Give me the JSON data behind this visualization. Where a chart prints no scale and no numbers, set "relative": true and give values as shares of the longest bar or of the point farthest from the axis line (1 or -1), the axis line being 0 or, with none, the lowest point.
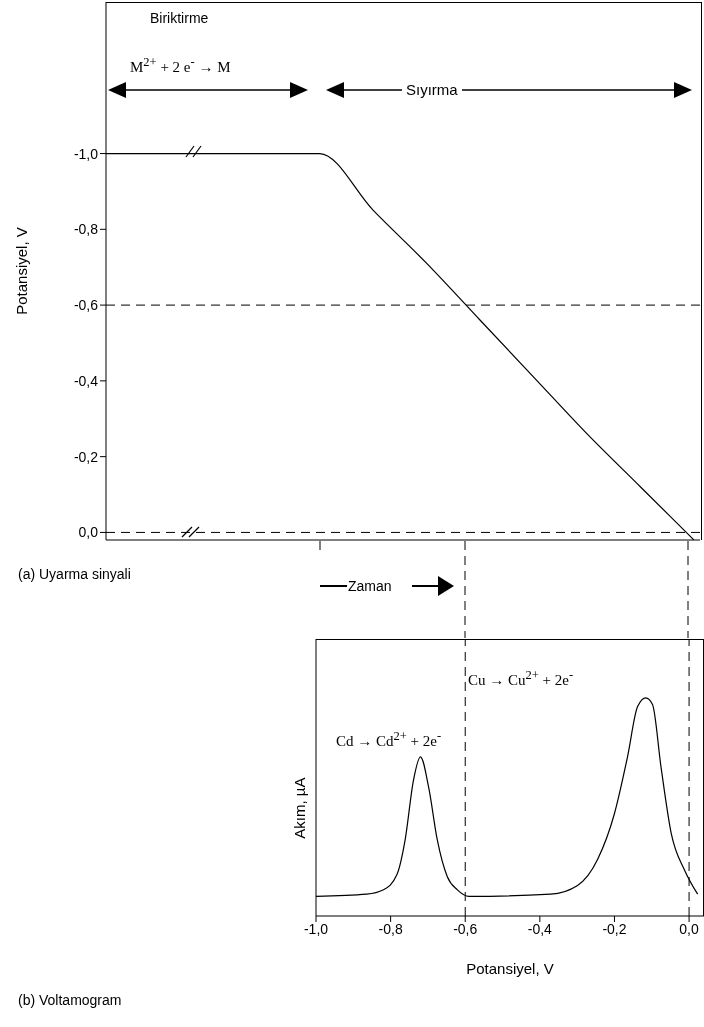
{
  "chart_data": [
    {
      "type": "line",
      "categories": [
        null,
        null,
        null,
        null,
        null,
        null,
        null,
        null,
        null,
        null,
        null,
        null
      ],
      "series": [
        {
          "color": "#000000",
          "values": [
            -1,
            -1,
            -1,
            -1,
            -1,
            -0.85,
            -0.71,
            -0.56,
            -0.41,
            -0.26,
            -0.12,
            0.02
          ]
        }
      ],
      "ylim": [
        0.02,
        -1.4
      ],
      "yticks": [
        {
          "value": -1,
          "label": "-1,0"
        },
        {
          "value": -0.8,
          "label": "-0,8"
        },
        {
          "value": -0.6,
          "label": "-0,6"
        },
        {
          "value": -0.4,
          "label": "-0,4"
        },
        {
          "value": -0.2,
          "label": "-0,2"
        },
        {
          "value": 0,
          "label": "0,0"
        }
      ],
      "ylabel": "Potansiyel, V",
      "annotations": [
        "Biriktirme",
        "M$^{2+}$ + 2 e$^{-}$ → M",
        "Sıyırma",
        "(a) Uyarma sinyali",
        "Zaman"
      ],
      "ref_lines": [
        {
          "axis": "y",
          "value": -0.6,
          "color": "#000000",
          "line_style": "dashed"
        },
        {
          "axis": "y",
          "value": 0,
          "color": "#000000",
          "line_style": "dashed"
        }
      ],
      "marker": "none",
      "tick_labels": "y"
    },
    {
      "type": "line",
      "x": [
        -1,
        -0.864,
        -0.819,
        -0.783,
        -0.761,
        -0.739,
        -0.72,
        -0.698,
        -0.675,
        -0.648,
        -0.621,
        -0.59,
        -0.371,
        -0.299,
        -0.245,
        -0.2,
        -0.165,
        -0.138,
        -0.116,
        -0.098,
        -0.075,
        -0.048,
        -0.012,
        0.023
      ],
      "series": [
        {
          "color": "#000000",
          "values": [
            0.09,
            0.1,
            0.12,
            0.19,
            0.35,
            0.62,
            0.73,
            0.59,
            0.35,
            0.18,
            0.12,
            0.09,
            0.1,
            0.14,
            0.26,
            0.47,
            0.73,
            0.96,
            1,
            0.97,
            0.68,
            0.38,
            0.21,
            0.1
          ]
        }
      ],
      "relative": true,
      "xlim": [
        -1,
        0.04
      ],
      "xticks": [
        {
          "value": -1,
          "label": "-1,0"
        },
        {
          "value": -0.8,
          "label": "-0,8"
        },
        {
          "value": -0.6,
          "label": "-0,6"
        },
        {
          "value": -0.4,
          "label": "-0,4"
        },
        {
          "value": -0.2,
          "label": "-0,2"
        },
        {
          "value": 0,
          "label": "0,0"
        }
      ],
      "xlabel": "Potansiyel, V",
      "ylabel": "Akım,  µA",
      "annotations": [
        "Cd → Cd$^{2+}$ + 2e$^{-}$",
        "Cu → Cu$^{2+}$ + 2e$^{-}$",
        "(b) Voltamogram"
      ],
      "ref_lines": [
        {
          "axis": "x",
          "value": -0.6,
          "color": "#000000",
          "line_style": "dashed"
        },
        {
          "axis": "x",
          "value": 0,
          "color": "#000000",
          "line_style": "dashed"
        }
      ],
      "marker": "none",
      "tick_labels": "x"
    }
  ]
}
